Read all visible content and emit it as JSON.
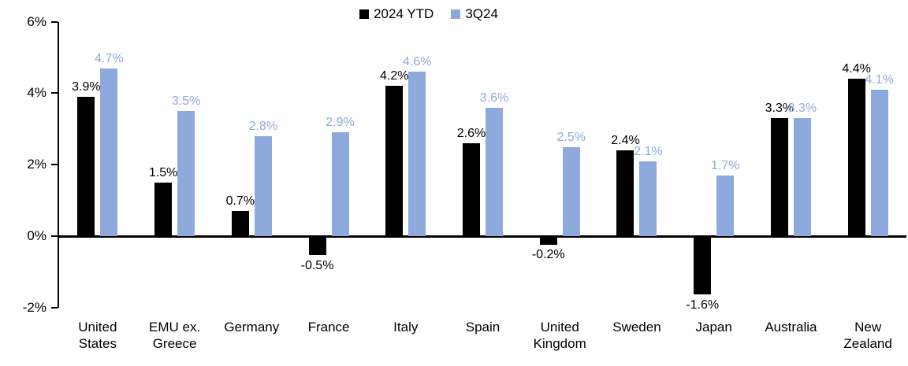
{
  "chart_data": {
    "type": "bar",
    "title": "",
    "categories": [
      "United States",
      "EMU ex. Greece",
      "Germany",
      "France",
      "Italy",
      "Spain",
      "United Kingdom",
      "Sweden",
      "Japan",
      "Australia",
      "New Zealand"
    ],
    "series": [
      {
        "name": "2024 YTD",
        "color": "#000000",
        "values": [
          3.9,
          1.5,
          0.7,
          -0.5,
          4.2,
          2.6,
          -0.2,
          2.4,
          -1.6,
          3.3,
          4.4
        ],
        "labels": [
          "3.9%",
          "1.5%",
          "0.7%",
          "-0.5%",
          "4.2%",
          "2.6%",
          "-0.2%",
          "2.4%",
          "-1.6%",
          "3.3%",
          "4.4%"
        ]
      },
      {
        "name": "3Q24",
        "color": "#8EA9DB",
        "values": [
          4.7,
          3.5,
          2.8,
          2.9,
          4.6,
          3.6,
          2.5,
          2.1,
          1.7,
          3.3,
          4.1
        ],
        "labels": [
          "4.7%",
          "3.5%",
          "2.8%",
          "2.9%",
          "4.6%",
          "3.6%",
          "2.5%",
          "2.1%",
          "1.7%",
          "3.3%",
          "4.1%"
        ]
      }
    ],
    "y_axis": {
      "min": -2,
      "max": 6,
      "ticks": [
        {
          "value": 6,
          "label": "6%"
        },
        {
          "value": 4,
          "label": "4%"
        },
        {
          "value": 2,
          "label": "2%"
        },
        {
          "value": 0,
          "label": "0%"
        },
        {
          "value": -2,
          "label": "-2%"
        }
      ]
    },
    "grid": false,
    "legend_position": "top-center",
    "value_labels": "outside-end",
    "xlabel": "",
    "ylabel": ""
  },
  "colors": {
    "series_2024_ytd": "#000000",
    "series_3q24": "#8EA9DB",
    "axis": "#000000",
    "background": "#FFFFFF"
  }
}
